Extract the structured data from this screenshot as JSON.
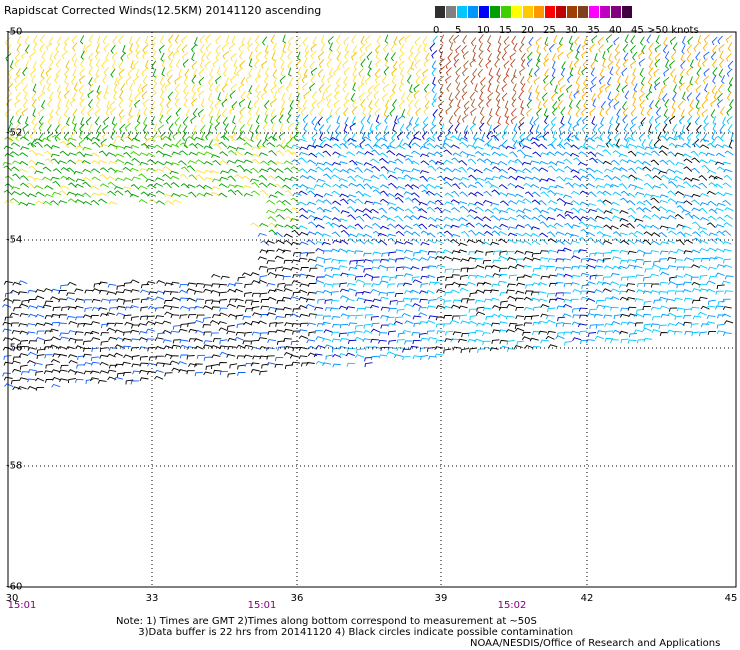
{
  "title": "Rapidscat Corrected Winds(12.5KM) 20141120 ascending",
  "legend": {
    "unit_label": ">50 knots",
    "ticks": [
      "0",
      "5",
      "10",
      "15",
      "20",
      "25",
      "30",
      "35",
      "40",
      "45"
    ],
    "colors": [
      "#303030",
      "#808080",
      "#00c8ff",
      "#0096ff",
      "#0000ff",
      "#00a000",
      "#40d000",
      "#ffff00",
      "#ffc800",
      "#ff9600",
      "#ff0000",
      "#c00000",
      "#a04000",
      "#804020",
      "#ff00ff",
      "#c000c0",
      "#800080",
      "#400040"
    ]
  },
  "map": {
    "lat_labels": [
      "-50",
      "-52",
      "-54",
      "-56",
      "-58",
      "-60"
    ],
    "lon_labels": [
      "30",
      "33",
      "36",
      "39",
      "42",
      "45"
    ],
    "time_labels": [
      "15:01",
      "15:01",
      "15:02"
    ]
  },
  "notes": "Note: 1) Times are GMT 2)Times along bottom correspond to measurement at ~50S\n       3)Data buffer is 22 hrs from 20141120 4) Black circles indicate possible contamination",
  "credit": "NOAA/NESDIS/Office of Research and Applications"
}
